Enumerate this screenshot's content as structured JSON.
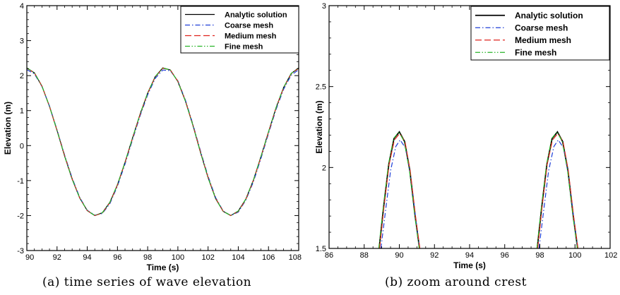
{
  "captions": {
    "a": "(a) time series of wave elevation",
    "b": "(b) zoom around crest"
  },
  "chart_data": [
    {
      "type": "line",
      "xlabel": "Time (s)",
      "ylabel": "Elevation (m)",
      "xlim": [
        90,
        108
      ],
      "ylim": [
        -3,
        4
      ],
      "xticks": [
        "90",
        "92",
        "94",
        "96",
        "98",
        "100",
        "102",
        "104",
        "106",
        "108"
      ],
      "yticks": [
        "-3",
        "-2",
        "-1",
        "0",
        "1",
        "2",
        "3",
        "4"
      ],
      "grid": false,
      "legend_position": "top-right",
      "series": [
        {
          "name": "Analytic solution",
          "color": "#000000",
          "style": "solid",
          "x": [
            90,
            90.5,
            91,
            91.5,
            92,
            92.5,
            93,
            93.5,
            94,
            94.5,
            95,
            95.5,
            96,
            96.5,
            97,
            97.5,
            98,
            98.5,
            99,
            99.5,
            100,
            100.5,
            101,
            101.5,
            102,
            102.5,
            103,
            103.5,
            104,
            104.5,
            105,
            105.5,
            106,
            106.5,
            107,
            107.5,
            108
          ],
          "y": [
            2.22,
            2.08,
            1.7,
            1.12,
            0.43,
            -0.3,
            -0.96,
            -1.5,
            -1.86,
            -2.0,
            -1.92,
            -1.62,
            -1.12,
            -0.48,
            0.22,
            0.9,
            1.5,
            1.97,
            2.22,
            2.16,
            1.83,
            1.27,
            0.57,
            -0.2,
            -0.92,
            -1.52,
            -1.88,
            -2.0,
            -1.87,
            -1.53,
            -0.99,
            -0.32,
            0.39,
            1.08,
            1.66,
            2.06,
            2.22
          ]
        },
        {
          "name": "Coarse mesh",
          "color": "#1f3fd8",
          "style": "dashdot",
          "x": [
            90,
            90.5,
            91,
            91.5,
            92,
            92.5,
            93,
            93.5,
            94,
            94.5,
            95,
            95.5,
            96,
            96.5,
            97,
            97.5,
            98,
            98.5,
            99,
            99.5,
            100,
            100.5,
            101,
            101.5,
            102,
            102.5,
            103,
            103.5,
            104,
            104.5,
            105,
            105.5,
            106,
            106.5,
            107,
            107.5,
            108
          ],
          "y": [
            2.17,
            2.05,
            1.69,
            1.13,
            0.45,
            -0.27,
            -0.93,
            -1.48,
            -1.85,
            -1.99,
            -1.94,
            -1.66,
            -1.16,
            -0.53,
            0.17,
            0.85,
            1.45,
            1.92,
            2.16,
            2.14,
            1.85,
            1.3,
            0.6,
            -0.16,
            -0.88,
            -1.49,
            -1.87,
            -2.0,
            -1.9,
            -1.56,
            -1.04,
            -0.37,
            0.34,
            1.03,
            1.61,
            2.01,
            2.17
          ]
        },
        {
          "name": "Medium mesh",
          "color": "#e0231c",
          "style": "dash",
          "x": [
            90,
            90.5,
            91,
            91.5,
            92,
            92.5,
            93,
            93.5,
            94,
            94.5,
            95,
            95.5,
            96,
            96.5,
            97,
            97.5,
            98,
            98.5,
            99,
            99.5,
            100,
            100.5,
            101,
            101.5,
            102,
            102.5,
            103,
            103.5,
            104,
            104.5,
            105,
            105.5,
            106,
            106.5,
            107,
            107.5,
            108
          ],
          "y": [
            2.21,
            2.08,
            1.7,
            1.12,
            0.43,
            -0.29,
            -0.95,
            -1.5,
            -1.86,
            -2.0,
            -1.93,
            -1.63,
            -1.13,
            -0.49,
            0.21,
            0.89,
            1.49,
            1.96,
            2.21,
            2.16,
            1.84,
            1.28,
            0.58,
            -0.19,
            -0.91,
            -1.51,
            -1.88,
            -2.0,
            -1.88,
            -1.54,
            -1.0,
            -0.33,
            0.38,
            1.07,
            1.65,
            2.05,
            2.21
          ]
        },
        {
          "name": "Fine mesh",
          "color": "#28b428",
          "style": "dashdotdot",
          "x": [
            90,
            90.5,
            91,
            91.5,
            92,
            92.5,
            93,
            93.5,
            94,
            94.5,
            95,
            95.5,
            96,
            96.5,
            97,
            97.5,
            98,
            98.5,
            99,
            99.5,
            100,
            100.5,
            101,
            101.5,
            102,
            102.5,
            103,
            103.5,
            104,
            104.5,
            105,
            105.5,
            106,
            106.5,
            107,
            107.5,
            108
          ],
          "y": [
            2.22,
            2.08,
            1.7,
            1.12,
            0.43,
            -0.3,
            -0.96,
            -1.5,
            -1.86,
            -2.0,
            -1.92,
            -1.62,
            -1.12,
            -0.48,
            0.22,
            0.9,
            1.5,
            1.97,
            2.22,
            2.16,
            1.83,
            1.27,
            0.57,
            -0.2,
            -0.92,
            -1.52,
            -1.88,
            -2.0,
            -1.87,
            -1.53,
            -0.99,
            -0.32,
            0.39,
            1.08,
            1.66,
            2.06,
            2.22
          ]
        }
      ]
    },
    {
      "type": "line",
      "xlabel": "Time (s)",
      "ylabel": "Elevation (m)",
      "xlim": [
        86,
        102
      ],
      "ylim": [
        1.5,
        3
      ],
      "xticks": [
        "86",
        "88",
        "90",
        "92",
        "94",
        "96",
        "98",
        "100",
        "102"
      ],
      "yticks": [
        "1.5",
        "2",
        "2.5",
        "3"
      ],
      "grid": false,
      "legend_position": "top-right",
      "series": [
        {
          "name": "Analytic solution",
          "color": "#000000",
          "style": "solid",
          "x": [
            88.85,
            89.1,
            89.4,
            89.7,
            90.0,
            90.3,
            90.6,
            90.9,
            91.15,
            null,
            97.85,
            98.1,
            98.4,
            98.7,
            99.0,
            99.3,
            99.6,
            99.9,
            100.15
          ],
          "y": [
            1.5,
            1.75,
            2.02,
            2.18,
            2.22,
            2.16,
            1.98,
            1.7,
            1.5,
            null,
            1.5,
            1.75,
            2.02,
            2.18,
            2.22,
            2.16,
            1.98,
            1.7,
            1.5
          ]
        },
        {
          "name": "Coarse mesh",
          "color": "#1f3fd8",
          "style": "dashdot",
          "x": [
            88.95,
            89.2,
            89.5,
            89.8,
            90.05,
            90.35,
            90.65,
            90.95,
            91.15,
            null,
            97.95,
            98.2,
            98.5,
            98.8,
            99.05,
            99.35,
            99.65,
            99.95,
            100.15
          ],
          "y": [
            1.5,
            1.72,
            1.98,
            2.13,
            2.17,
            2.12,
            1.94,
            1.67,
            1.5,
            null,
            1.5,
            1.72,
            1.98,
            2.13,
            2.17,
            2.12,
            1.94,
            1.67,
            1.5
          ]
        },
        {
          "name": "Medium mesh",
          "color": "#e0231c",
          "style": "dash",
          "x": [
            88.88,
            89.12,
            89.42,
            89.72,
            90.02,
            90.32,
            90.62,
            90.92,
            91.17,
            null,
            97.88,
            98.12,
            98.42,
            98.72,
            99.02,
            99.32,
            99.62,
            99.92,
            100.17
          ],
          "y": [
            1.5,
            1.75,
            2.02,
            2.17,
            2.21,
            2.16,
            1.98,
            1.7,
            1.5,
            null,
            1.5,
            1.75,
            2.02,
            2.17,
            2.21,
            2.16,
            1.98,
            1.7,
            1.5
          ]
        },
        {
          "name": "Fine mesh",
          "color": "#28b428",
          "style": "dashdotdot",
          "x": [
            88.83,
            89.08,
            89.38,
            89.68,
            89.98,
            90.28,
            90.58,
            90.88,
            91.13,
            null,
            97.83,
            98.08,
            98.38,
            98.68,
            98.98,
            99.28,
            99.58,
            99.88,
            100.13
          ],
          "y": [
            1.5,
            1.75,
            2.02,
            2.18,
            2.22,
            2.16,
            1.98,
            1.7,
            1.5,
            null,
            1.5,
            1.75,
            2.02,
            2.18,
            2.22,
            2.16,
            1.98,
            1.7,
            1.5
          ]
        }
      ]
    }
  ]
}
